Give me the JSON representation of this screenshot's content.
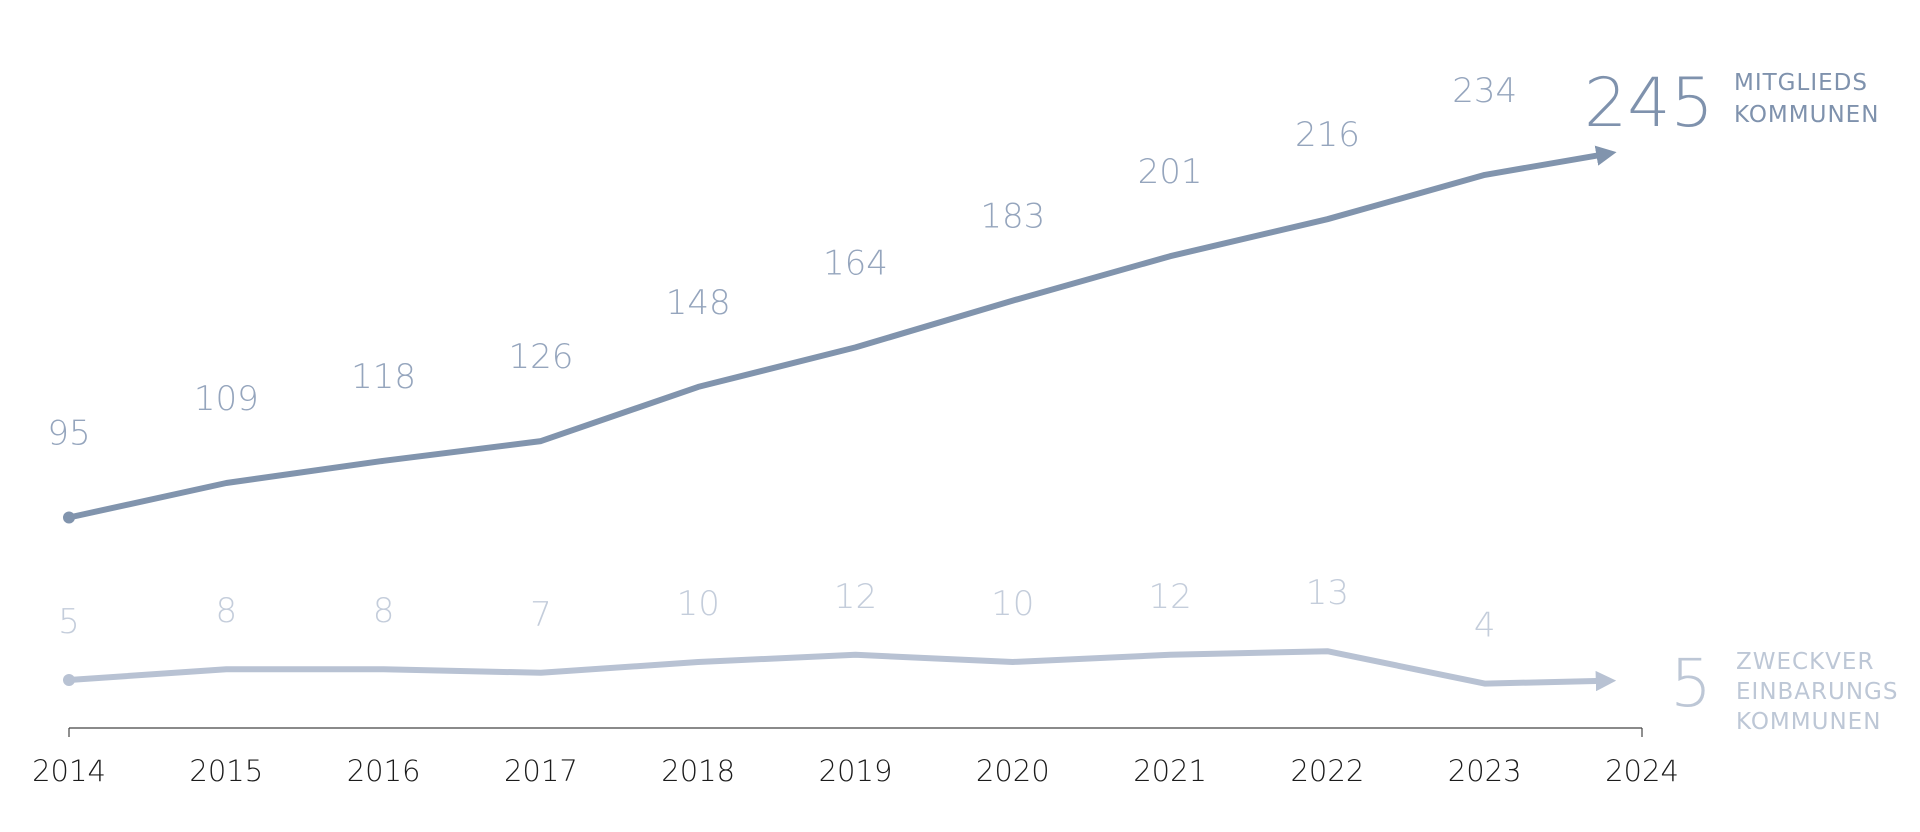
{
  "chart_data": {
    "type": "line",
    "categories": [
      "2014",
      "2015",
      "2016",
      "2017",
      "2018",
      "2019",
      "2020",
      "2021",
      "2022",
      "2023",
      "2024"
    ],
    "series": [
      {
        "key": "mitglieds",
        "values": [
          95,
          109,
          118,
          126,
          148,
          164,
          183,
          201,
          216,
          234,
          245
        ],
        "color": "#8194ad",
        "label_color": "#95a5bd",
        "final_value": "245",
        "label_lines": [
          "MITGLIEDS",
          "KOMMUNEN"
        ]
      },
      {
        "key": "zweckver",
        "values": [
          5,
          8,
          8,
          7,
          10,
          12,
          10,
          12,
          13,
          4,
          5
        ],
        "color": "#b8c2d3",
        "label_color": "#c4cddb",
        "final_value": "5",
        "label_lines": [
          "ZWECKVER",
          "EINBARUNGS",
          "KOMMUNEN"
        ]
      }
    ],
    "data_labels": {
      "mitglieds": [
        "95",
        "109",
        "118",
        "126",
        "148",
        "164",
        "183",
        "201",
        "216",
        "234"
      ],
      "zweckver": [
        "5",
        "8",
        "8",
        "7",
        "10",
        "12",
        "10",
        "12",
        "13",
        "4"
      ]
    },
    "xlabel": "",
    "ylabel": "",
    "grid": false,
    "legend": "none"
  }
}
